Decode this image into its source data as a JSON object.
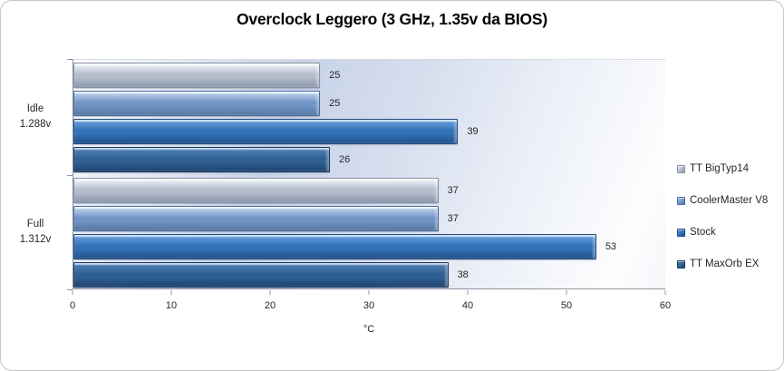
{
  "window": {
    "background": "#ffffff",
    "border_color": "#c6c6c6"
  },
  "chart_data": {
    "type": "bar",
    "orientation": "horizontal",
    "title": "Overclock Leggero (3 GHz, 1.35v da BIOS)",
    "categories": [
      {
        "label": "Idle",
        "sublabel": "1.288v"
      },
      {
        "label": "Full",
        "sublabel": "1.312v"
      }
    ],
    "series": [
      {
        "name": "TT BigTyp14",
        "values": [
          25,
          37
        ],
        "color": "#b2bccb",
        "gradient": [
          "#ffffff",
          "#e3e8ef",
          "#b2bccb",
          "#8b96aa"
        ],
        "border": "#8791a4"
      },
      {
        "name": "CoolerMaster V8",
        "values": [
          25,
          37
        ],
        "color": "#7295c7",
        "gradient": [
          "#e9f1fa",
          "#aec6e5",
          "#7295c7",
          "#54789e"
        ],
        "border": "#49699b"
      },
      {
        "name": "Stock",
        "values": [
          39,
          53
        ],
        "color": "#3371b7",
        "gradient": [
          "#a6ccf0",
          "#5e95d3",
          "#3371b7",
          "#23508a"
        ],
        "border": "#1d4a80"
      },
      {
        "name": "TT MaxOrb EX",
        "values": [
          26,
          38
        ],
        "color": "#306093",
        "gradient": [
          "#7fa9d4",
          "#4b79ae",
          "#306093",
          "#1e436e"
        ],
        "border": "#19395f"
      }
    ],
    "bar_order_top_to_bottom": [
      "TT BigTyp14",
      "CoolerMaster V8",
      "Stock",
      "TT MaxOrb EX"
    ],
    "value_labels_shown": true,
    "xlabel": "°C",
    "xlim": [
      0,
      60
    ],
    "xticks": [
      0,
      10,
      20,
      30,
      40,
      50,
      60
    ],
    "gridlines": "off",
    "legend_position": "right",
    "axis_color": "#8e96a2",
    "label_color": "#262626",
    "plot_gradient": [
      "#ffffff",
      "#c8d3e8",
      "#edf1f8",
      "#ffffff"
    ]
  }
}
